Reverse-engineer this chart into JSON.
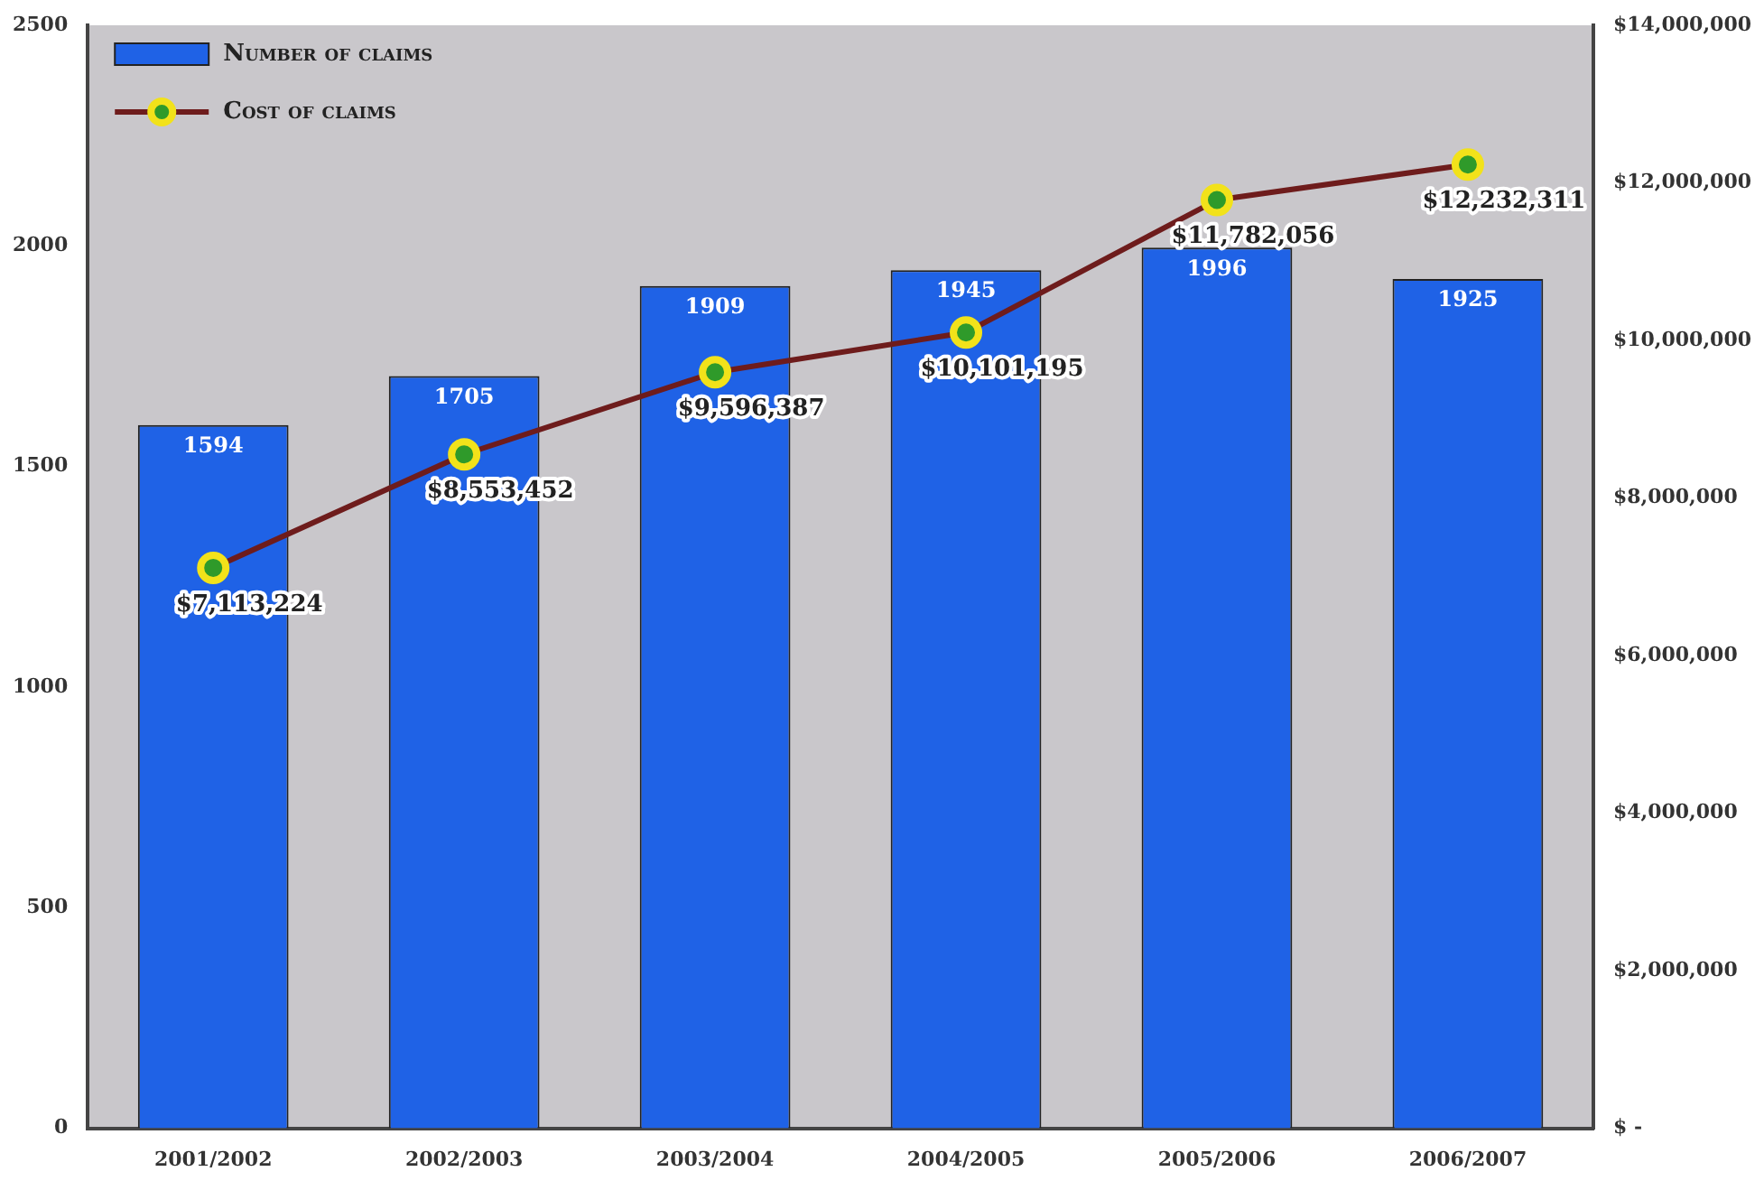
{
  "chart_data": {
    "type": "bar",
    "categories": [
      "2001/2002",
      "2002/2003",
      "2003/2004",
      "2004/2005",
      "2005/2006",
      "2006/2007"
    ],
    "series": [
      {
        "name": "Number of claims",
        "color": "#1f62e6",
        "values": [
          1594,
          1705,
          1909,
          1945,
          1996,
          1925
        ],
        "value_labels": [
          "1594",
          "1705",
          "1909",
          "1945",
          "1996",
          "1925"
        ]
      },
      {
        "name": "Cost of claims",
        "type": "line",
        "axis": "y2",
        "color": "#6e1c1c",
        "values": [
          7113224,
          8553452,
          9596387,
          10101195,
          11782056,
          12232311
        ],
        "value_labels": [
          "$7,113,224",
          "$8,553,452",
          "$9,596,387",
          "$10,101,195",
          "$11,782,056",
          "$12,232,311"
        ]
      }
    ],
    "ylim": [
      0,
      2500
    ],
    "yticks": [
      0,
      500,
      1000,
      1500,
      2000,
      2500
    ],
    "y2lim": [
      0,
      14000000
    ],
    "y2ticks": [
      {
        "value": 0,
        "label": "$ -"
      },
      {
        "value": 2000000,
        "label": "$2,000,000"
      },
      {
        "value": 4000000,
        "label": "$4,000,000"
      },
      {
        "value": 6000000,
        "label": "$6,000,000"
      },
      {
        "value": 8000000,
        "label": "$8,000,000"
      },
      {
        "value": 10000000,
        "label": "$10,000,000"
      },
      {
        "value": 12000000,
        "label": "$12,000,000"
      },
      {
        "value": 14000000,
        "label": "$14,000,000"
      }
    ],
    "grid": false,
    "legend": "top left",
    "marker": "circle",
    "line_style": "solid"
  }
}
